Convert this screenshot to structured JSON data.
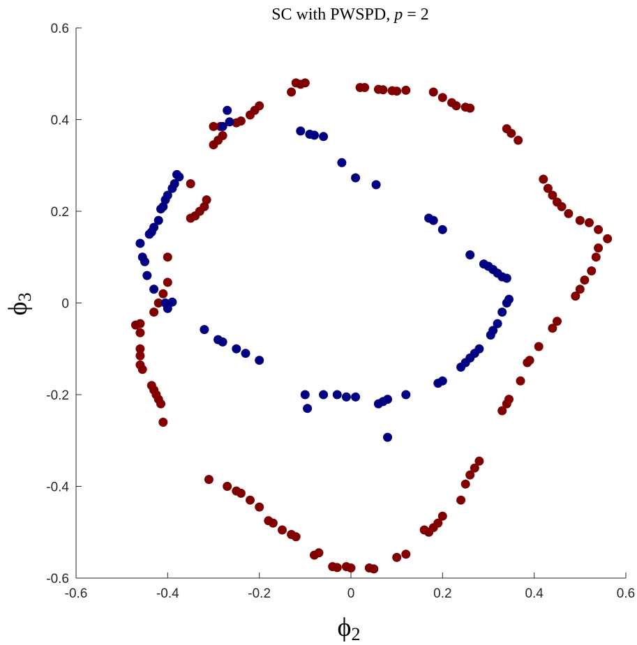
{
  "chart_data": {
    "type": "scatter",
    "title_main": "SC with PWSPD, ",
    "title_var": "p",
    "title_tail": " = 2",
    "xlabel_symbol": "ϕ",
    "xlabel_sub": "2",
    "ylabel_symbol": "ϕ",
    "ylabel_sub": "3",
    "xlim": [
      -0.6,
      0.6
    ],
    "ylim": [
      -0.6,
      0.6
    ],
    "xticks": [
      "-0.6",
      "-0.4",
      "-0.2",
      "0",
      "0.2",
      "0.4",
      "0.6"
    ],
    "yticks": [
      "-0.6",
      "-0.4",
      "-0.2",
      "0",
      "0.2",
      "0.4",
      "0.6"
    ],
    "xtick_values": [
      -0.6,
      -0.4,
      -0.2,
      0,
      0.2,
      0.4,
      0.6
    ],
    "ytick_values": [
      -0.6,
      -0.4,
      -0.2,
      0,
      0.2,
      0.4,
      0.6
    ],
    "grid": false,
    "series": [
      {
        "color": "#800000",
        "points": [
          [
            -0.13,
            0.46
          ],
          [
            -0.12,
            0.48
          ],
          [
            -0.11,
            0.477
          ],
          [
            -0.1,
            0.48
          ],
          [
            -0.2,
            0.43
          ],
          [
            -0.21,
            0.42
          ],
          [
            -0.22,
            0.41
          ],
          [
            -0.24,
            0.397
          ],
          [
            -0.25,
            0.393
          ],
          [
            -0.28,
            0.365
          ],
          [
            -0.29,
            0.355
          ],
          [
            -0.3,
            0.345
          ],
          [
            -0.285,
            0.385
          ],
          [
            -0.3,
            0.385
          ],
          [
            -0.315,
            0.225
          ],
          [
            -0.32,
            0.21
          ],
          [
            -0.33,
            0.2
          ],
          [
            -0.34,
            0.19
          ],
          [
            -0.35,
            0.185
          ],
          [
            -0.35,
            0.26
          ],
          [
            -0.4,
            0.1
          ],
          [
            -0.4,
            0.045
          ],
          [
            -0.41,
            0.02
          ],
          [
            -0.42,
            0.0
          ],
          [
            -0.43,
            -0.02
          ],
          [
            -0.46,
            -0.045
          ],
          [
            -0.47,
            -0.048
          ],
          [
            -0.46,
            -0.065
          ],
          [
            -0.46,
            -0.1
          ],
          [
            -0.46,
            -0.115
          ],
          [
            -0.46,
            -0.135
          ],
          [
            -0.455,
            -0.145
          ],
          [
            -0.435,
            -0.18
          ],
          [
            -0.43,
            -0.19
          ],
          [
            -0.425,
            -0.2
          ],
          [
            -0.42,
            -0.21
          ],
          [
            -0.415,
            -0.22
          ],
          [
            -0.41,
            -0.26
          ],
          [
            -0.31,
            -0.385
          ],
          [
            -0.27,
            -0.4
          ],
          [
            -0.25,
            -0.41
          ],
          [
            -0.24,
            -0.415
          ],
          [
            -0.22,
            -0.43
          ],
          [
            -0.2,
            -0.445
          ],
          [
            -0.18,
            -0.475
          ],
          [
            -0.17,
            -0.48
          ],
          [
            -0.15,
            -0.495
          ],
          [
            -0.13,
            -0.505
          ],
          [
            -0.12,
            -0.51
          ],
          [
            -0.08,
            -0.55
          ],
          [
            -0.07,
            -0.545
          ],
          [
            -0.04,
            -0.575
          ],
          [
            -0.03,
            -0.577
          ],
          [
            -0.01,
            -0.575
          ],
          [
            0.0,
            -0.578
          ],
          [
            0.04,
            -0.578
          ],
          [
            0.05,
            -0.58
          ],
          [
            0.1,
            -0.555
          ],
          [
            0.12,
            -0.548
          ],
          [
            0.02,
            0.47
          ],
          [
            0.03,
            0.47
          ],
          [
            0.06,
            0.466
          ],
          [
            0.07,
            0.465
          ],
          [
            0.09,
            0.463
          ],
          [
            0.1,
            0.462
          ],
          [
            0.12,
            0.464
          ],
          [
            0.18,
            0.46
          ],
          [
            0.2,
            0.448
          ],
          [
            0.22,
            0.437
          ],
          [
            0.23,
            0.43
          ],
          [
            0.25,
            0.427
          ],
          [
            0.26,
            0.425
          ],
          [
            0.34,
            0.38
          ],
          [
            0.35,
            0.37
          ],
          [
            0.365,
            0.355
          ],
          [
            0.42,
            0.27
          ],
          [
            0.43,
            0.25
          ],
          [
            0.44,
            0.235
          ],
          [
            0.45,
            0.22
          ],
          [
            0.46,
            0.21
          ],
          [
            0.475,
            0.195
          ],
          [
            0.5,
            0.18
          ],
          [
            0.52,
            0.175
          ],
          [
            0.54,
            0.16
          ],
          [
            0.56,
            0.14
          ],
          [
            0.54,
            0.12
          ],
          [
            0.535,
            0.1
          ],
          [
            0.525,
            0.07
          ],
          [
            0.51,
            0.05
          ],
          [
            0.5,
            0.03
          ],
          [
            0.49,
            0.015
          ],
          [
            0.45,
            -0.04
          ],
          [
            0.44,
            -0.055
          ],
          [
            0.41,
            -0.095
          ],
          [
            0.39,
            -0.125
          ],
          [
            0.385,
            -0.13
          ],
          [
            0.37,
            -0.17
          ],
          [
            0.345,
            -0.21
          ],
          [
            0.34,
            -0.22
          ],
          [
            0.33,
            -0.235
          ],
          [
            0.28,
            -0.345
          ],
          [
            0.27,
            -0.36
          ],
          [
            0.26,
            -0.375
          ],
          [
            0.25,
            -0.395
          ],
          [
            0.24,
            -0.43
          ],
          [
            0.2,
            -0.465
          ],
          [
            0.19,
            -0.48
          ],
          [
            0.18,
            -0.49
          ],
          [
            0.17,
            -0.5
          ],
          [
            0.16,
            -0.495
          ]
        ]
      },
      {
        "color": "#000080",
        "points": [
          [
            -0.27,
            0.42
          ],
          [
            -0.265,
            0.395
          ],
          [
            -0.28,
            0.385
          ],
          [
            -0.38,
            0.28
          ],
          [
            -0.375,
            0.275
          ],
          [
            -0.385,
            0.26
          ],
          [
            -0.39,
            0.25
          ],
          [
            -0.4,
            0.235
          ],
          [
            -0.405,
            0.225
          ],
          [
            -0.41,
            0.21
          ],
          [
            -0.415,
            0.205
          ],
          [
            -0.42,
            0.18
          ],
          [
            -0.43,
            0.165
          ],
          [
            -0.435,
            0.155
          ],
          [
            -0.44,
            0.15
          ],
          [
            -0.46,
            0.13
          ],
          [
            -0.455,
            0.1
          ],
          [
            -0.45,
            0.09
          ],
          [
            -0.445,
            0.06
          ],
          [
            -0.43,
            0.03
          ],
          [
            -0.405,
            0.0
          ],
          [
            -0.4,
            -0.012
          ],
          [
            -0.39,
            0.002
          ],
          [
            -0.32,
            -0.058
          ],
          [
            -0.29,
            -0.08
          ],
          [
            -0.28,
            -0.085
          ],
          [
            -0.25,
            -0.1
          ],
          [
            -0.23,
            -0.11
          ],
          [
            -0.2,
            -0.125
          ],
          [
            -0.11,
            0.375
          ],
          [
            -0.09,
            0.368
          ],
          [
            -0.08,
            0.366
          ],
          [
            -0.06,
            0.363
          ],
          [
            -0.02,
            0.306
          ],
          [
            0.01,
            0.273
          ],
          [
            0.055,
            0.258
          ],
          [
            0.17,
            0.185
          ],
          [
            0.18,
            0.18
          ],
          [
            0.2,
            0.16
          ],
          [
            0.26,
            0.105
          ],
          [
            0.29,
            0.085
          ],
          [
            0.3,
            0.08
          ],
          [
            0.31,
            0.073
          ],
          [
            0.32,
            0.065
          ],
          [
            0.33,
            0.057
          ],
          [
            0.34,
            0.054
          ],
          [
            0.345,
            0.008
          ],
          [
            0.34,
            0.0
          ],
          [
            0.33,
            -0.02
          ],
          [
            0.32,
            -0.045
          ],
          [
            0.31,
            -0.06
          ],
          [
            0.305,
            -0.07
          ],
          [
            0.28,
            -0.1
          ],
          [
            0.27,
            -0.11
          ],
          [
            0.26,
            -0.12
          ],
          [
            0.25,
            -0.13
          ],
          [
            0.24,
            -0.14
          ],
          [
            0.2,
            -0.17
          ],
          [
            0.19,
            -0.175
          ],
          [
            0.12,
            -0.2
          ],
          [
            0.08,
            -0.21
          ],
          [
            0.07,
            -0.215
          ],
          [
            0.06,
            -0.22
          ],
          [
            0.08,
            -0.293
          ],
          [
            0.01,
            -0.205
          ],
          [
            -0.01,
            -0.205
          ],
          [
            -0.03,
            -0.2
          ],
          [
            -0.06,
            -0.2
          ],
          [
            -0.1,
            -0.2
          ],
          [
            -0.095,
            -0.23
          ]
        ]
      }
    ]
  }
}
